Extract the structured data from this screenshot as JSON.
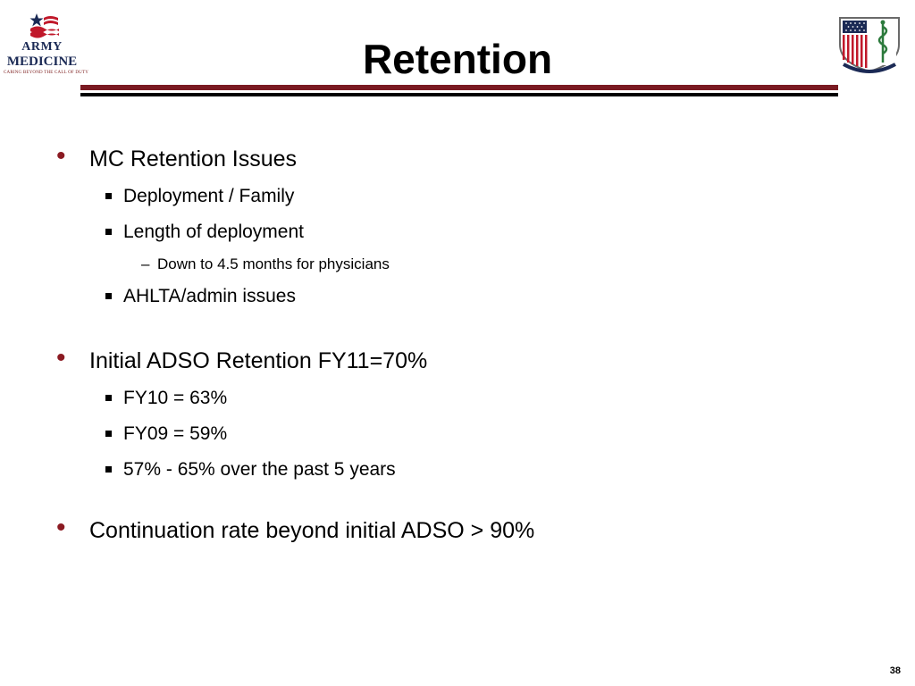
{
  "header": {
    "title": "Retention",
    "logo_left": {
      "line1": "ARMY",
      "line2": "MEDICINE",
      "line3": "CARING BEYOND THE CALL OF DUTY"
    }
  },
  "colors": {
    "accent": "#8b1a22",
    "rule_red": "#7a1a22",
    "navy": "#1b2a55"
  },
  "bullets": [
    {
      "text": "MC Retention Issues",
      "sub": [
        {
          "text": "Deployment / Family"
        },
        {
          "text": "Length of deployment",
          "sub": [
            {
              "text": "Down to 4.5 months for physicians"
            }
          ]
        },
        {
          "text": "AHLTA/admin issues"
        }
      ]
    },
    {
      "text": "Initial ADSO Retention FY11=70%",
      "sub": [
        {
          "text": "FY10 = 63%"
        },
        {
          "text": "FY09 = 59%"
        },
        {
          "text": "57% - 65% over the past 5 years"
        }
      ]
    },
    {
      "text": "Continuation rate beyond initial ADSO > 90%"
    }
  ],
  "footer": {
    "page_number": "38"
  }
}
